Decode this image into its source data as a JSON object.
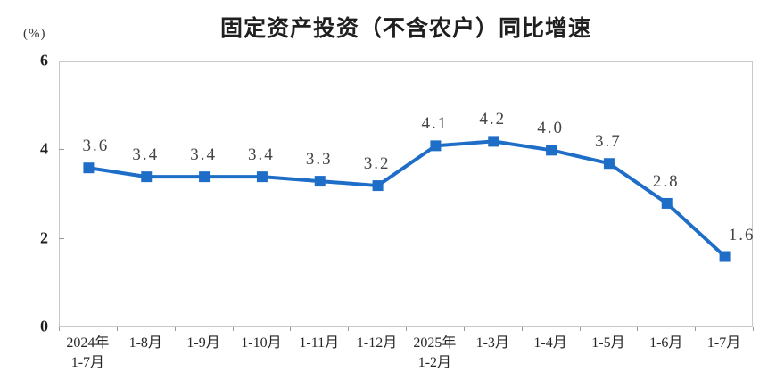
{
  "chart_data": {
    "type": "line",
    "title": "固定资产投资（不含农户）同比增速",
    "unit_label": "(%)",
    "categories": [
      "2024年\n1-7月",
      "1-8月",
      "1-9月",
      "1-10月",
      "1-11月",
      "1-12月",
      "2025年\n1-2月",
      "1-3月",
      "1-4月",
      "1-5月",
      "1-6月",
      "1-7月"
    ],
    "values": [
      3.6,
      3.4,
      3.4,
      3.4,
      3.3,
      3.2,
      4.1,
      4.2,
      4.0,
      3.7,
      2.8,
      1.6
    ],
    "point_labels": [
      "3.6",
      "3.4",
      "3.4",
      "3.4",
      "3.3",
      "3.2",
      "4.1",
      "4.2",
      "4.0",
      "3.7",
      "2.8",
      "1.6"
    ],
    "xlabel": "",
    "ylabel": "(%)",
    "ylim": [
      0,
      6
    ],
    "yticks": [
      0,
      2,
      4,
      6
    ],
    "grid": false,
    "legend_position": "none",
    "line_color": "#1e6ec8",
    "marker": "square",
    "axis_color": "#c9c9c9",
    "tick_color": "#9a9a9a",
    "point_label_color": "#454545",
    "text_color": "#262626",
    "background": "#ffffff"
  }
}
